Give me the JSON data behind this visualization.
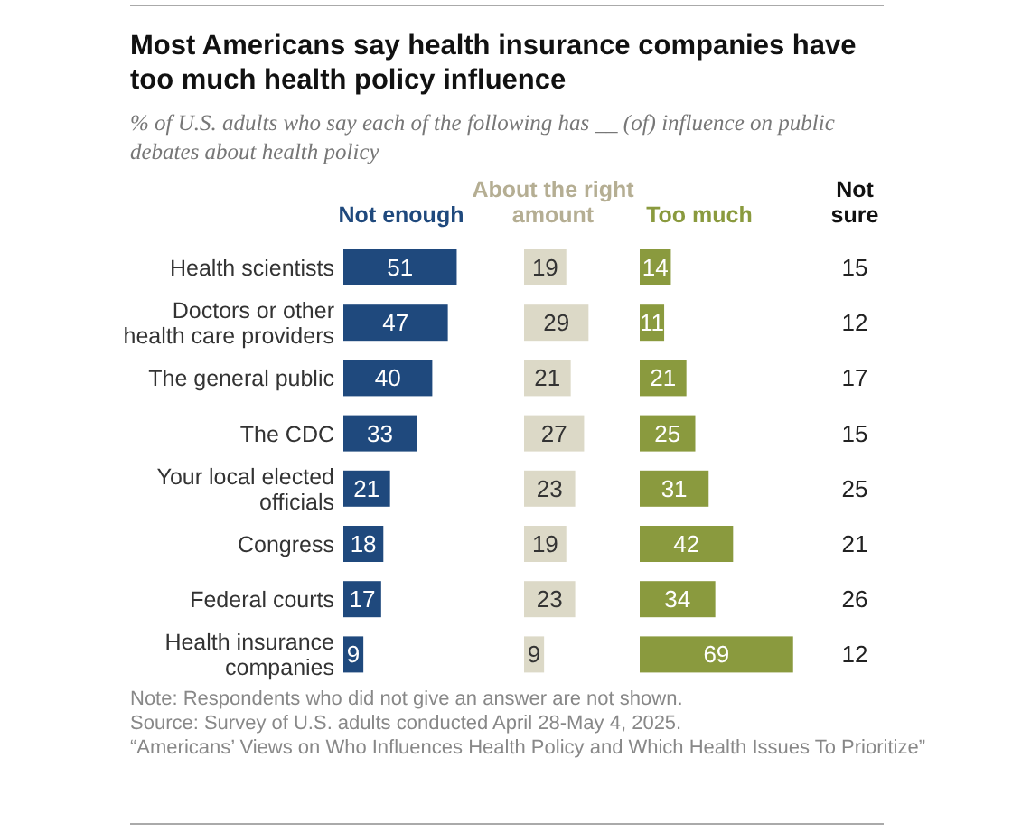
{
  "chart_data": [
    {
      "type": "bar",
      "orientation": "horizontal",
      "title": "Not enough",
      "color": "#1f497d",
      "categories": [
        "Health scientists",
        "Doctors or other health care providers",
        "The general public",
        "The CDC",
        "Your local elected officials",
        "Congress",
        "Federal courts",
        "Health insurance companies"
      ],
      "values": [
        51,
        47,
        40,
        33,
        21,
        18,
        17,
        9
      ],
      "data_labels": true,
      "tick_labels": "y"
    },
    {
      "type": "bar",
      "orientation": "horizontal",
      "title": "About the right amount",
      "color": "#dcd9c7",
      "categories": [
        null,
        null,
        null,
        null,
        null,
        null,
        null,
        null
      ],
      "values": [
        19,
        29,
        21,
        27,
        23,
        19,
        23,
        9
      ],
      "data_labels": true,
      "tick_labels": false
    },
    {
      "type": "bar",
      "orientation": "horizontal",
      "title": "Too much",
      "color": "#8a9a3e",
      "categories": [
        null,
        null,
        null,
        null,
        null,
        null,
        null,
        null
      ],
      "values": [
        14,
        11,
        21,
        25,
        31,
        42,
        34,
        69
      ],
      "data_labels": true,
      "tick_labels": false
    },
    {
      "type": "other",
      "title": "Not sure",
      "values": [
        15,
        12,
        17,
        15,
        25,
        21,
        26,
        12
      ],
      "data_labels": true
    },
    {
      "type": "other",
      "title": "Most Americans say health insurance companies have too much health policy influence",
      "subtitle": "% of U.S. adults who say each of the following has __ (of) influence on public debates about health policy",
      "annotations": [
        "Note: Respondents who did not give an answer are not shown.",
        "Source: Survey of U.S. adults conducted April 28-May 4, 2025.",
        "“Americans’ Views on Who Influences Health Policy and Which Health Issues To Prioritize”"
      ]
    }
  ]
}
